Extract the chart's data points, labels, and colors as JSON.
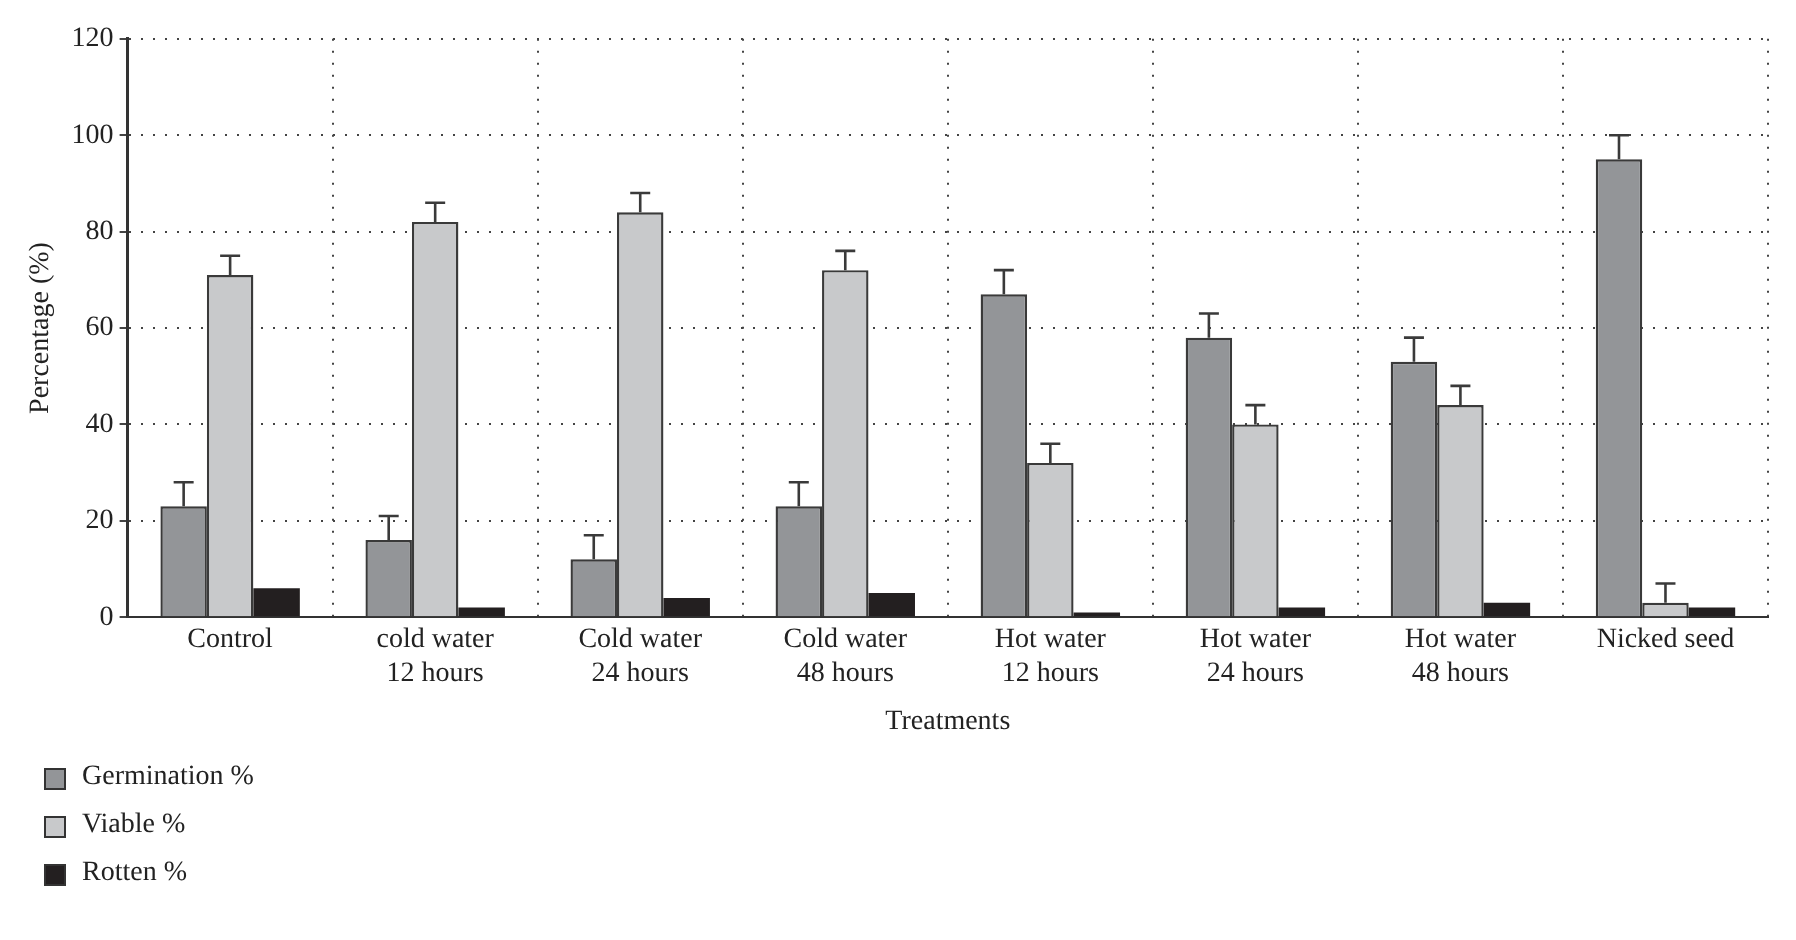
{
  "chart_data": {
    "type": "bar",
    "xlabel": "Treatments",
    "ylabel": "Percentage (%)",
    "categories": [
      "Control",
      "cold water 12 hours",
      "Cold water 24 hours",
      "Cold water 48 hours",
      "Hot water 12 hours",
      "Hot water 24 hours",
      "Hot water 48 hours",
      "Nicked seed"
    ],
    "series": [
      {
        "name": "Germination %",
        "color": "#939598",
        "values": [
          23,
          16,
          12,
          23,
          67,
          58,
          53,
          95
        ],
        "errors": [
          [
            23,
            28
          ],
          [
            16,
            21
          ],
          [
            12,
            17
          ],
          [
            23,
            28
          ],
          [
            67,
            72
          ],
          [
            58,
            63
          ],
          [
            53,
            58
          ],
          [
            95,
            100
          ]
        ]
      },
      {
        "name": "Viable %",
        "color": "#c8c9cb",
        "values": [
          71,
          82,
          84,
          72,
          32,
          40,
          44,
          3
        ],
        "errors": [
          [
            71,
            75
          ],
          [
            82,
            86
          ],
          [
            84,
            88
          ],
          [
            72,
            76
          ],
          [
            32,
            36
          ],
          [
            40,
            44
          ],
          [
            44,
            48
          ],
          [
            3,
            7
          ]
        ]
      },
      {
        "name": "Rotten %",
        "color": "#231f20",
        "values": [
          6,
          2,
          4,
          5,
          1,
          2,
          3,
          2
        ]
      }
    ],
    "ylim": [
      0,
      120
    ],
    "yticks": [
      0,
      20,
      40,
      60,
      80,
      100,
      120
    ],
    "grid": true,
    "legend": "bottom left"
  }
}
